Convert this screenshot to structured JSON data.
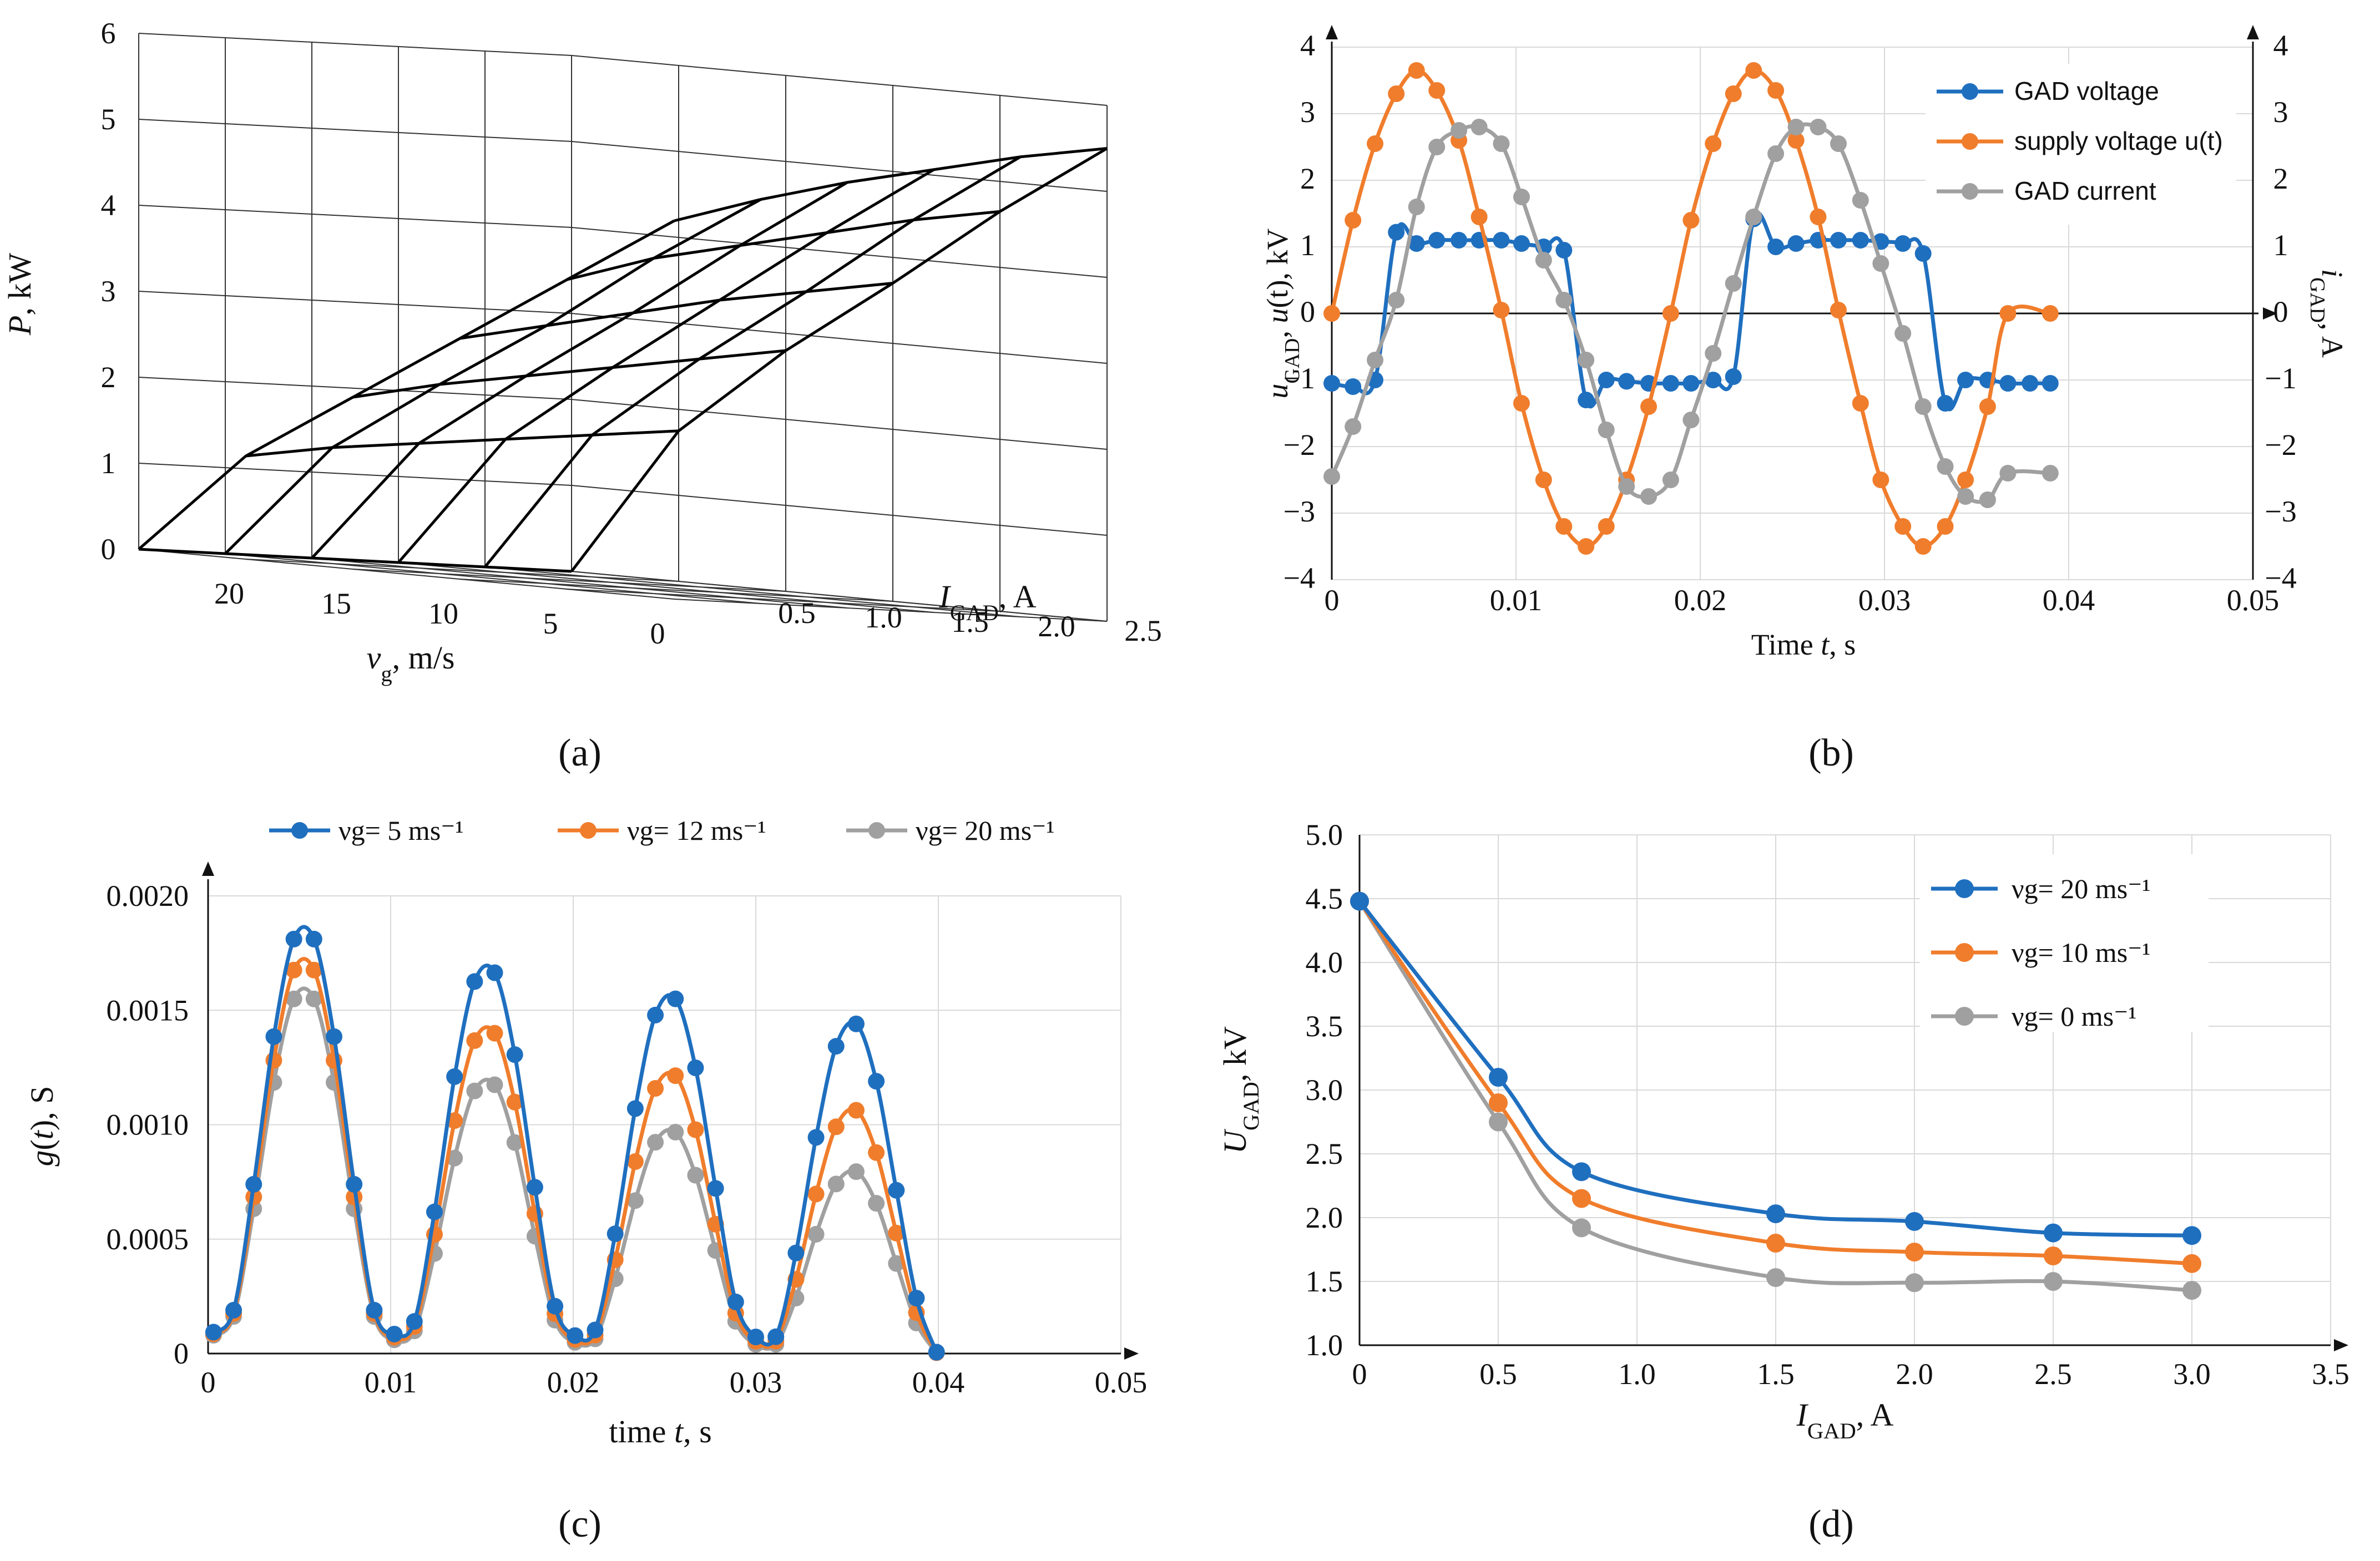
{
  "chart_data": [
    {
      "type": "surface3d",
      "panel": "(a)",
      "zlabel": "P, kW",
      "xlabel": "v_g, m/s",
      "ylabel": "I_GAD, A",
      "z_ticks": [
        "0",
        "1",
        "2",
        "3",
        "4",
        "5",
        "6"
      ],
      "x_ticks": [
        "20",
        "15",
        "10",
        "5",
        "0"
      ],
      "y_ticks": [
        "0.5",
        "1.0",
        "1.5",
        "2.0",
        "2.5"
      ],
      "zlim": [
        0,
        6
      ],
      "x": [
        25,
        20,
        15,
        10,
        5,
        0
      ],
      "y": [
        0,
        0.5,
        1.0,
        1.5,
        2.0,
        2.5
      ],
      "z": [
        [
          0,
          1.2,
          2.0,
          2.8,
          3.6,
          4.4
        ],
        [
          0,
          1.35,
          2.2,
          3.0,
          3.9,
          4.7
        ],
        [
          0,
          1.45,
          2.35,
          3.2,
          4.1,
          4.95
        ],
        [
          0,
          1.55,
          2.5,
          3.4,
          4.3,
          5.15
        ],
        [
          0,
          1.65,
          2.65,
          3.55,
          4.5,
          5.35
        ],
        [
          0,
          1.75,
          2.8,
          3.7,
          4.65,
          5.5
        ]
      ]
    },
    {
      "type": "line",
      "panel": "(b)",
      "xlabel": "Time t, s",
      "ylabel": "u_GAD, u(t), kV",
      "y2label": "i_GAD, A",
      "xlim": [
        0,
        0.05
      ],
      "ylim": [
        -4,
        4
      ],
      "y2lim": [
        -4,
        4
      ],
      "x_ticks": [
        "0",
        "0.01",
        "0.02",
        "0.03",
        "0.04",
        "0.05"
      ],
      "y_ticks": [
        "4",
        "3",
        "2",
        "1",
        "0",
        "−1",
        "−2",
        "−3",
        "−4"
      ],
      "y2_ticks": [
        "4",
        "3",
        "2",
        "1",
        "0",
        "−1",
        "−2",
        "−3",
        "−4"
      ],
      "series": [
        {
          "name": "GAD voltage",
          "color": "#1f6fbf",
          "points": [
            [
              0,
              -1.05
            ],
            [
              0.00115,
              -1.1
            ],
            [
              0.00235,
              -1.0
            ],
            [
              0.0035,
              1.22
            ],
            [
              0.0046,
              1.05
            ],
            [
              0.0057,
              1.1
            ],
            [
              0.0069,
              1.1
            ],
            [
              0.008,
              1.1
            ],
            [
              0.0092,
              1.1
            ],
            [
              0.0103,
              1.05
            ],
            [
              0.0115,
              1.0
            ],
            [
              0.0126,
              0.95
            ],
            [
              0.0138,
              -1.3
            ],
            [
              0.0149,
              -1.0
            ],
            [
              0.016,
              -1.02
            ],
            [
              0.0172,
              -1.05
            ],
            [
              0.0184,
              -1.05
            ],
            [
              0.0195,
              -1.05
            ],
            [
              0.0207,
              -1.0
            ],
            [
              0.0218,
              -0.95
            ],
            [
              0.0229,
              1.42
            ],
            [
              0.0241,
              1.0
            ],
            [
              0.0252,
              1.05
            ],
            [
              0.0264,
              1.1
            ],
            [
              0.0275,
              1.1
            ],
            [
              0.0287,
              1.1
            ],
            [
              0.0298,
              1.08
            ],
            [
              0.031,
              1.05
            ],
            [
              0.0321,
              0.9
            ],
            [
              0.0333,
              -1.35
            ],
            [
              0.0344,
              -1.0
            ],
            [
              0.0356,
              -1.0
            ],
            [
              0.0367,
              -1.05
            ],
            [
              0.0379,
              -1.05
            ],
            [
              0.039,
              -1.05
            ]
          ]
        },
        {
          "name": "supply voltage u(t)",
          "color": "#f07d2c",
          "points": [
            [
              0,
              0
            ],
            [
              0.00115,
              1.4
            ],
            [
              0.00235,
              2.55
            ],
            [
              0.0035,
              3.3
            ],
            [
              0.0046,
              3.65
            ],
            [
              0.0057,
              3.35
            ],
            [
              0.0069,
              2.6
            ],
            [
              0.008,
              1.45
            ],
            [
              0.0092,
              0.05
            ],
            [
              0.0103,
              -1.35
            ],
            [
              0.0115,
              -2.5
            ],
            [
              0.0126,
              -3.2
            ],
            [
              0.0138,
              -3.5
            ],
            [
              0.0149,
              -3.2
            ],
            [
              0.016,
              -2.5
            ],
            [
              0.0172,
              -1.4
            ],
            [
              0.0184,
              0
            ],
            [
              0.0195,
              1.4
            ],
            [
              0.0207,
              2.55
            ],
            [
              0.0218,
              3.3
            ],
            [
              0.0229,
              3.65
            ],
            [
              0.0241,
              3.35
            ],
            [
              0.0252,
              2.6
            ],
            [
              0.0264,
              1.45
            ],
            [
              0.0275,
              0.05
            ],
            [
              0.0287,
              -1.35
            ],
            [
              0.0298,
              -2.5
            ],
            [
              0.031,
              -3.2
            ],
            [
              0.0321,
              -3.5
            ],
            [
              0.0333,
              -3.2
            ],
            [
              0.0344,
              -2.5
            ],
            [
              0.0356,
              -1.4
            ],
            [
              0.0367,
              0
            ],
            [
              0.039,
              0
            ]
          ]
        },
        {
          "name": "GAD current",
          "color": "#a0a0a0",
          "points": [
            [
              0,
              -2.45
            ],
            [
              0.00115,
              -1.7
            ],
            [
              0.00235,
              -0.7
            ],
            [
              0.0035,
              0.2
            ],
            [
              0.0046,
              1.6
            ],
            [
              0.0057,
              2.5
            ],
            [
              0.0069,
              2.75
            ],
            [
              0.008,
              2.8
            ],
            [
              0.0092,
              2.55
            ],
            [
              0.0103,
              1.75
            ],
            [
              0.0115,
              0.8
            ],
            [
              0.0126,
              0.2
            ],
            [
              0.0138,
              -0.7
            ],
            [
              0.0149,
              -1.75
            ],
            [
              0.016,
              -2.6
            ],
            [
              0.0172,
              -2.75
            ],
            [
              0.0184,
              -2.5
            ],
            [
              0.0195,
              -1.6
            ],
            [
              0.0207,
              -0.6
            ],
            [
              0.0218,
              0.45
            ],
            [
              0.0229,
              1.45
            ],
            [
              0.0241,
              2.4
            ],
            [
              0.0252,
              2.8
            ],
            [
              0.0264,
              2.8
            ],
            [
              0.0275,
              2.55
            ],
            [
              0.0287,
              1.7
            ],
            [
              0.0298,
              0.75
            ],
            [
              0.031,
              -0.3
            ],
            [
              0.0321,
              -1.4
            ],
            [
              0.0333,
              -2.3
            ],
            [
              0.0344,
              -2.75
            ],
            [
              0.0356,
              -2.8
            ],
            [
              0.0367,
              -2.4
            ],
            [
              0.039,
              -2.4
            ]
          ]
        }
      ]
    },
    {
      "type": "line",
      "panel": "(c)",
      "xlabel": "time t, s",
      "ylabel": "g(t), S",
      "xlim": [
        0,
        0.05
      ],
      "ylim": [
        0,
        0.002
      ],
      "x_ticks": [
        "0",
        "0.01",
        "0.02",
        "0.03",
        "0.04",
        "0.05"
      ],
      "y_ticks": [
        "0.0020",
        "0.0015",
        "0.0010",
        "0.0005",
        "0"
      ],
      "legend_position": "top",
      "series": [
        {
          "name": "νg= 5 ms⁻¹",
          "color": "#1f6fbf",
          "peaks": [
            0.00187,
            0.0017,
            0.00157,
            0.00145
          ]
        },
        {
          "name": "νg= 12 ms⁻¹",
          "color": "#f07d2c",
          "peaks": [
            0.00173,
            0.00143,
            0.00123,
            0.00107
          ]
        },
        {
          "name": "νg= 20 ms⁻¹",
          "color": "#a0a0a0",
          "peaks": [
            0.0016,
            0.0012,
            0.00098,
            0.0008
          ]
        }
      ]
    },
    {
      "type": "line",
      "panel": "(d)",
      "xlabel": "I_GAD, A",
      "ylabel": "U_GAD, kV",
      "xlim": [
        0,
        3.5
      ],
      "ylim": [
        1.0,
        5.0
      ],
      "x_ticks": [
        "0",
        "0.5",
        "1.0",
        "1.5",
        "2.0",
        "2.5",
        "3.0",
        "3.5"
      ],
      "y_ticks": [
        "5.0",
        "4.5",
        "4.0",
        "3.5",
        "3.0",
        "2.5",
        "2.0",
        "1.5",
        "1.0"
      ],
      "legend_position": "top-right",
      "x": [
        0,
        0.5,
        0.8,
        1.5,
        2.0,
        2.5,
        3.0
      ],
      "series": [
        {
          "name": "νg= 20 ms⁻¹",
          "color": "#1f6fbf",
          "values": [
            4.48,
            3.1,
            2.36,
            2.03,
            1.97,
            1.88,
            1.86
          ]
        },
        {
          "name": "νg= 10 ms⁻¹",
          "color": "#f07d2c",
          "values": [
            4.48,
            2.9,
            2.15,
            1.8,
            1.73,
            1.7,
            1.64
          ]
        },
        {
          "name": "νg= 0 ms⁻¹",
          "color": "#a0a0a0",
          "values": [
            4.48,
            2.75,
            1.92,
            1.53,
            1.49,
            1.5,
            1.43
          ]
        }
      ]
    }
  ],
  "captions": [
    "(a)",
    "(b)",
    "(c)",
    "(d)"
  ]
}
